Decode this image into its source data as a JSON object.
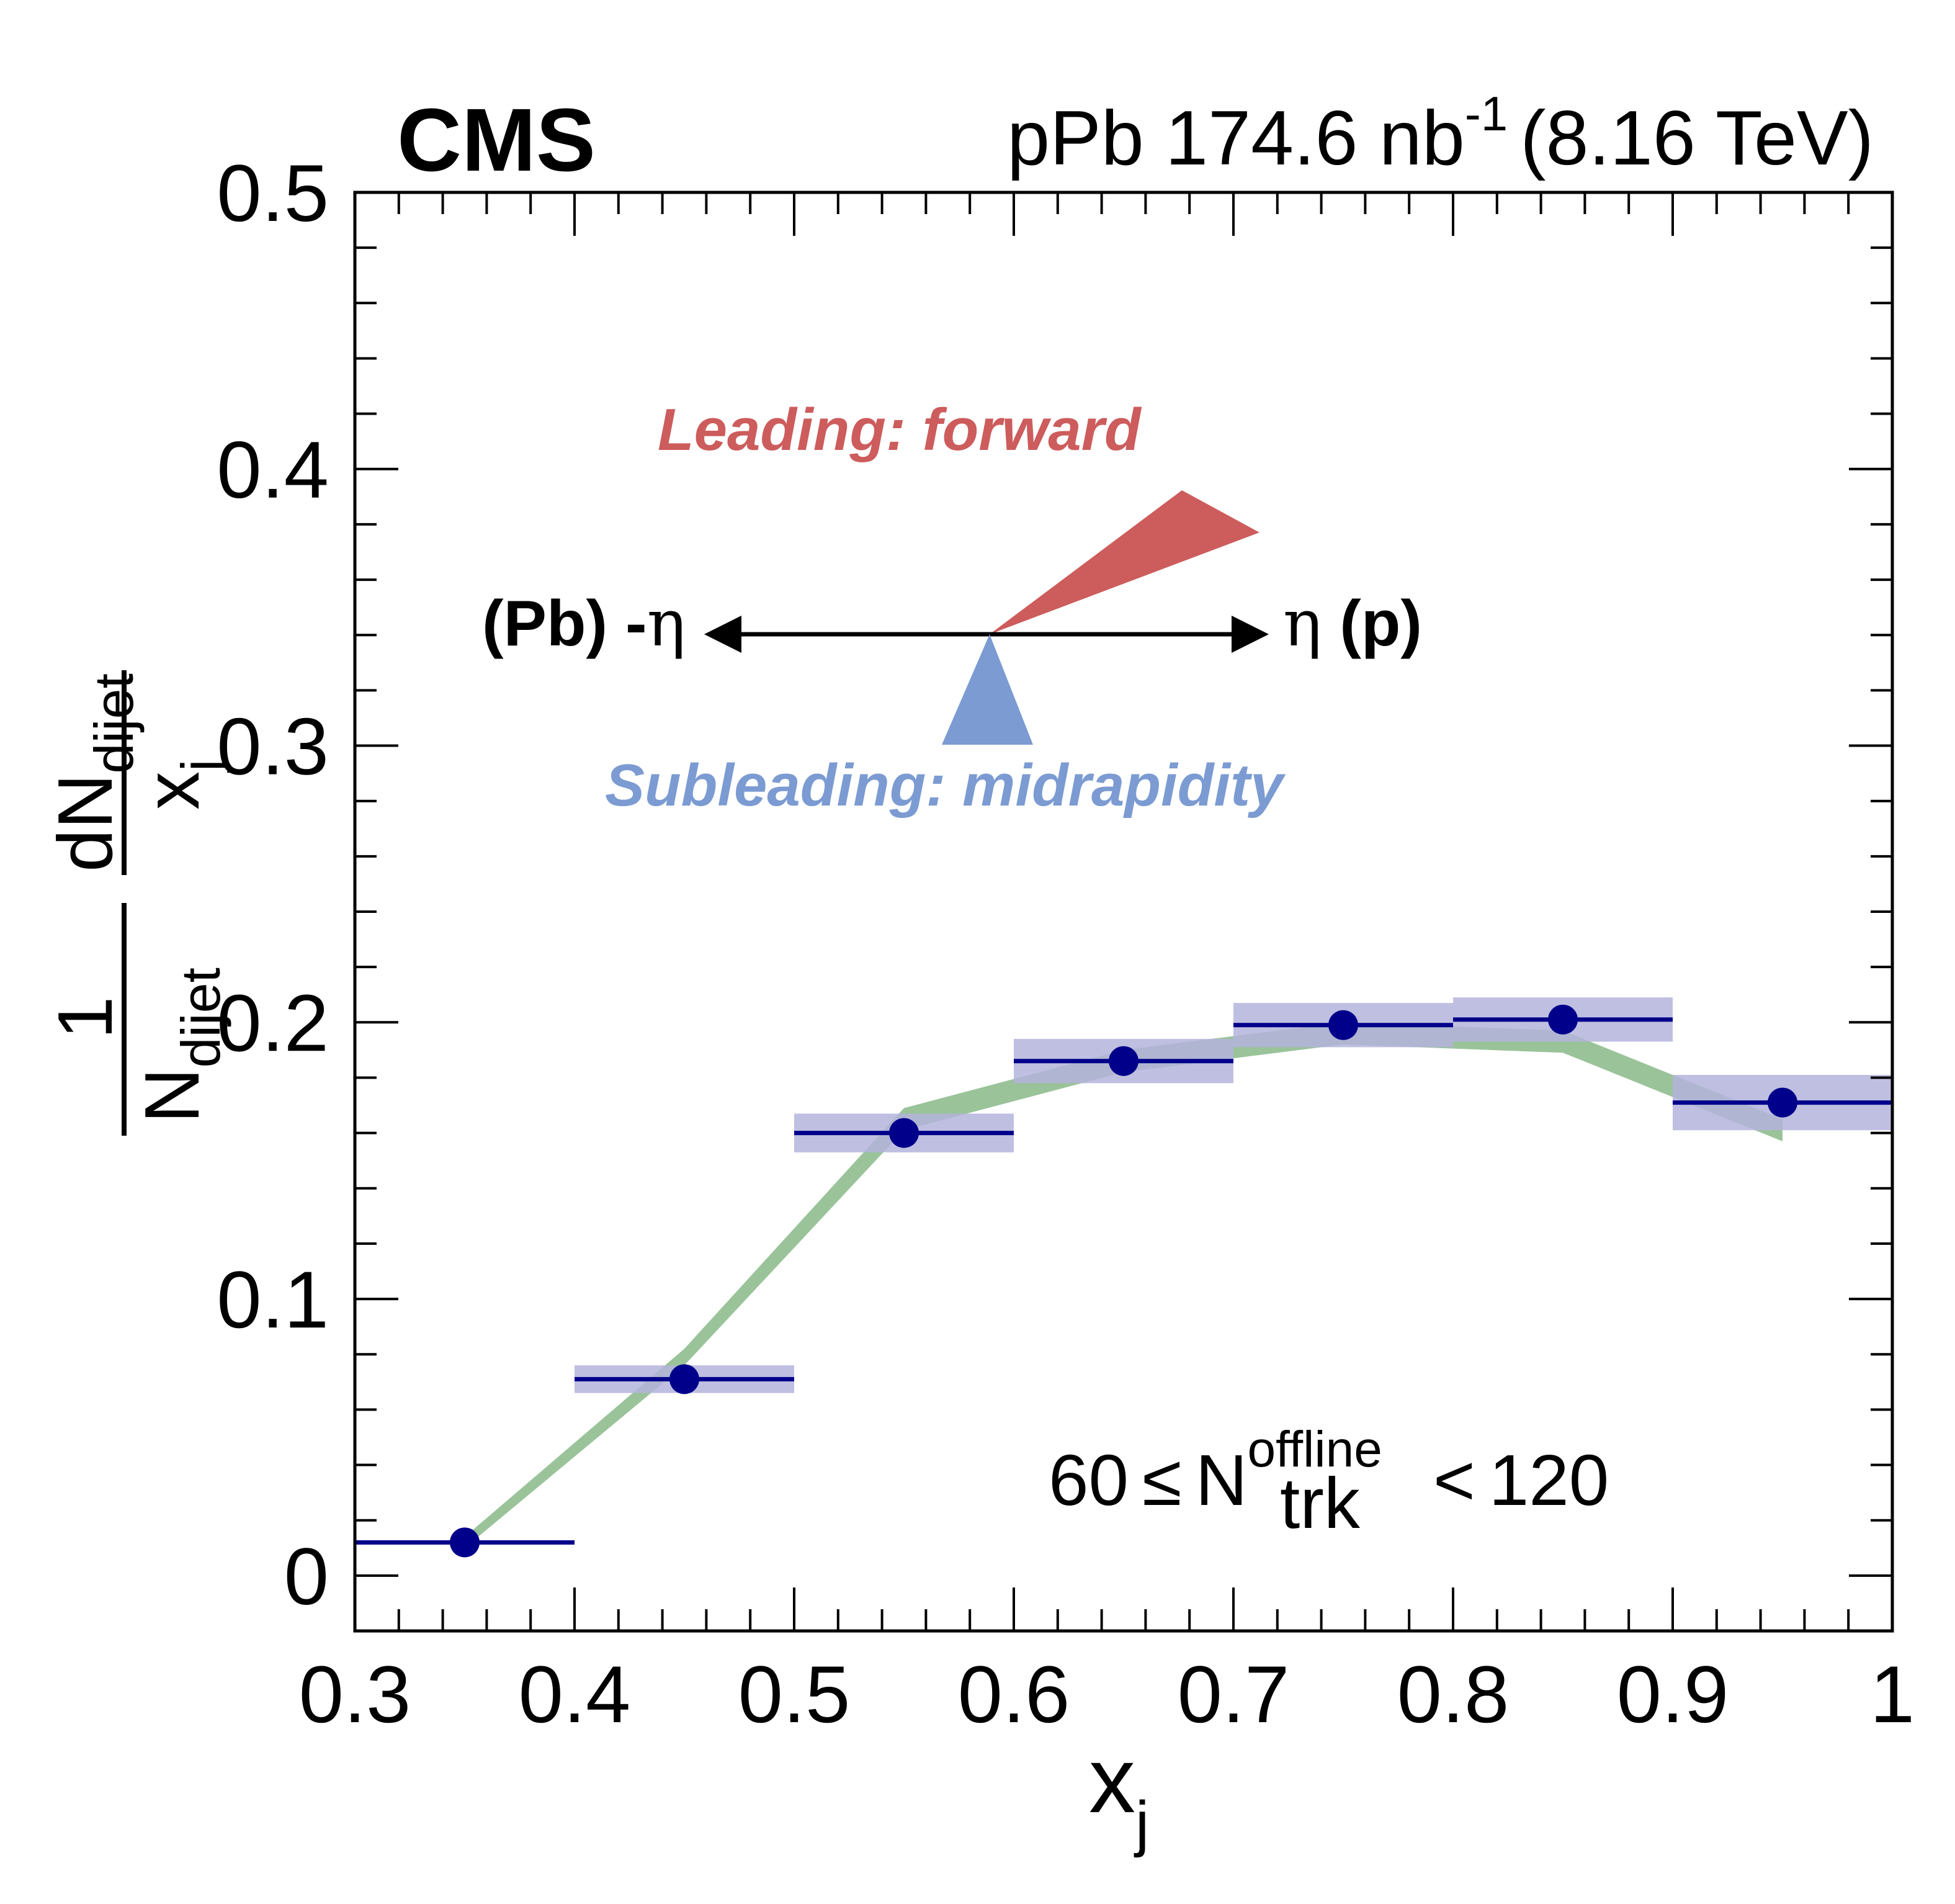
{
  "experiment": "CMS",
  "luminosity": {
    "main": "pPb 174.6 nb",
    "exponent": "-1",
    "energy": "(8.16 TeV)"
  },
  "annotations": {
    "leading": "Leading: forward",
    "subleading": "Subleading: midrapidity",
    "left_dir_prefix": "(Pb) -",
    "left_dir_symbol": "η",
    "right_dir_symbol": "η",
    "right_dir_suffix": " (p)"
  },
  "condition": {
    "low": "60",
    "op1": "≤",
    "var": "N",
    "var_sup": "offline",
    "var_sub": "trk",
    "op2": "<",
    "high": "120"
  },
  "axis_labels": {
    "x_main": "x",
    "x_sub": "j",
    "y_num_outer": "1",
    "y_den_outer_main": "N",
    "y_den_outer_sub": "dijet",
    "y_num_inner_main": "dN",
    "y_num_inner_sub": "dijet",
    "y_den_inner_main": "x",
    "y_den_inner_sub": "j"
  },
  "colors": {
    "data": "#00008b",
    "syst_band": "#b4b4dc",
    "model_band": "#8fbc8f",
    "leading": "#cd5c5c",
    "subleading": "#7b9bd2"
  },
  "chart_data": {
    "type": "scatter",
    "xlim": [
      0.3,
      1.0
    ],
    "ylim": [
      -0.02,
      0.5
    ],
    "x_ticks": [
      "0.3",
      "0.4",
      "0.5",
      "0.6",
      "0.7",
      "0.8",
      "0.9",
      "1"
    ],
    "y_ticks": [
      "0",
      "0.1",
      "0.2",
      "0.3",
      "0.4",
      "0.5"
    ],
    "grid": false,
    "series": [
      {
        "kind": "data",
        "bins": [
          [
            0.3,
            0.4
          ],
          [
            0.4,
            0.5
          ],
          [
            0.5,
            0.6
          ],
          [
            0.6,
            0.7
          ],
          [
            0.7,
            0.8
          ],
          [
            0.8,
            0.9
          ],
          [
            0.9,
            1.0
          ]
        ],
        "x": [
          0.35,
          0.45,
          0.55,
          0.65,
          0.75,
          0.85,
          0.95
        ],
        "y": [
          0.012,
          0.071,
          0.16,
          0.186,
          0.199,
          0.201,
          0.171
        ],
        "syst": [
          0.0,
          0.005,
          0.007,
          0.008,
          0.008,
          0.008,
          0.01
        ]
      },
      {
        "kind": "model_band",
        "x": [
          0.35,
          0.45,
          0.55,
          0.65,
          0.75,
          0.85,
          0.95
        ],
        "y": [
          0.012,
          0.079,
          0.165,
          0.186,
          0.196,
          0.193,
          0.161
        ],
        "width": [
          0.002,
          0.003,
          0.004,
          0.004,
          0.004,
          0.004,
          0.004
        ]
      }
    ]
  }
}
